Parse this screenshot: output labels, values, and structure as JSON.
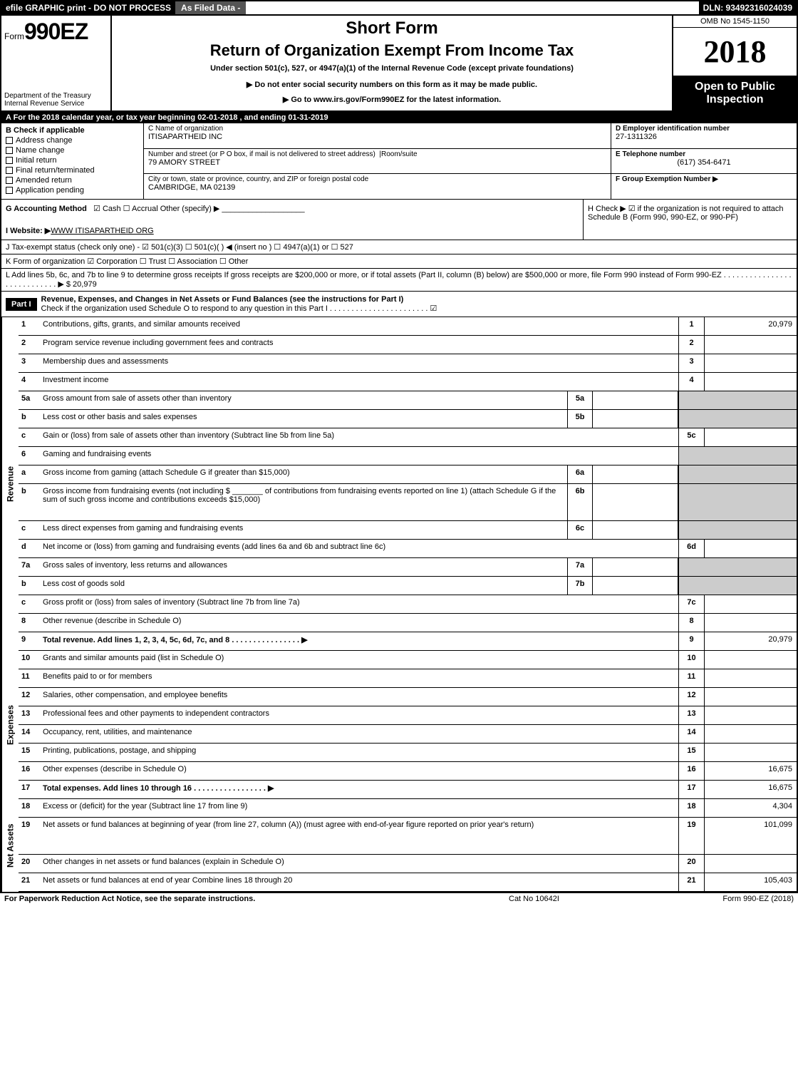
{
  "topbar": {
    "left": "efile GRAPHIC print - DO NOT PROCESS",
    "mid": "As Filed Data -",
    "dln": "DLN: 93492316024039"
  },
  "header": {
    "form_prefix": "Form",
    "form_number": "990EZ",
    "dept": "Department of the Treasury\nInternal Revenue Service",
    "short_form": "Short Form",
    "title": "Return of Organization Exempt From Income Tax",
    "subtitle": "Under section 501(c), 527, or 4947(a)(1) of the Internal Revenue Code (except private foundations)",
    "notice": "▶ Do not enter social security numbers on this form as it may be made public.",
    "goto": "▶ Go to www.irs.gov/Form990EZ for the latest information.",
    "omb": "OMB No 1545-1150",
    "year": "2018",
    "open": "Open to Public Inspection"
  },
  "rowA": "A  For the 2018 calendar year, or tax year beginning 02-01-2018            , and ending 01-31-2019",
  "secB": {
    "title": "B  Check if applicable",
    "items": [
      "Address change",
      "Name change",
      "Initial return",
      "Final return/terminated",
      "Amended return",
      "Application pending"
    ]
  },
  "secC": {
    "name_lbl": "C Name of organization",
    "name": "ITISAPARTHEID INC",
    "addr_lbl": "Number and street (or P O  box, if mail is not delivered to street address)",
    "room_lbl": "Room/suite",
    "addr": "79 AMORY STREET",
    "city_lbl": "City or town, state or province, country, and ZIP or foreign postal code",
    "city": "CAMBRIDGE, MA  02139"
  },
  "secD": {
    "lbl": "D Employer identification number",
    "val": "27-1311326"
  },
  "secE": {
    "lbl": "E Telephone number",
    "val": "(617) 354-6471"
  },
  "secF": {
    "lbl": "F Group Exemption Number  ▶",
    "val": ""
  },
  "secG": {
    "lbl": "G Accounting Method",
    "opts": "☑ Cash   ☐ Accrual   Other (specify) ▶",
    "website_lbl": "I Website: ▶",
    "website": "WWW ITISAPARTHEID ORG"
  },
  "secH": {
    "text": "H   Check ▶  ☑  if the organization is not required to attach Schedule B (Form 990, 990-EZ, or 990-PF)"
  },
  "lineJ": "J Tax-exempt status (check only one) - ☑ 501(c)(3)  ☐ 501(c)(  ) ◀ (insert no ) ☐ 4947(a)(1) or ☐ 527",
  "lineK": "K Form of organization    ☑ Corporation   ☐ Trust   ☐ Association   ☐ Other",
  "lineL": "L Add lines 5b, 6c, and 7b to line 9 to determine gross receipts  If gross receipts are $200,000 or more, or if total assets (Part II, column (B) below) are $500,000 or more, file Form 990 instead of Form 990-EZ  . . . . . . . . . . . . . . . . . . . . . . . . . . . .  ▶ $ 20,979",
  "part1": {
    "hdr": "Part I",
    "title": "Revenue, Expenses, and Changes in Net Assets or Fund Balances (see the instructions for Part I)",
    "check": "Check if the organization used Schedule O to respond to any question in this Part I . . . . . . . . . . . . . . . . . . . . . . .  ☑"
  },
  "sections": {
    "revenue": "Revenue",
    "expenses": "Expenses",
    "netassets": "Net Assets"
  },
  "rows": [
    {
      "n": "1",
      "d": "Contributions, gifts, grants, and similar amounts received",
      "rn": "1",
      "rv": "20,979"
    },
    {
      "n": "2",
      "d": "Program service revenue including government fees and contracts",
      "rn": "2",
      "rv": ""
    },
    {
      "n": "3",
      "d": "Membership dues and assessments",
      "rn": "3",
      "rv": ""
    },
    {
      "n": "4",
      "d": "Investment income",
      "rn": "4",
      "rv": ""
    },
    {
      "n": "5a",
      "d": "Gross amount from sale of assets other than inventory",
      "mn": "5a",
      "mv": "",
      "shade": true
    },
    {
      "n": "b",
      "d": "Less  cost or other basis and sales expenses",
      "mn": "5b",
      "mv": "",
      "shade": true
    },
    {
      "n": "c",
      "d": "Gain or (loss) from sale of assets other than inventory (Subtract line 5b from line 5a)",
      "rn": "5c",
      "rv": ""
    },
    {
      "n": "6",
      "d": "Gaming and fundraising events",
      "shade": true,
      "noval": true
    },
    {
      "n": "a",
      "d": "Gross income from gaming (attach Schedule G if greater than $15,000)",
      "mn": "6a",
      "mv": "",
      "shade": true
    },
    {
      "n": "b",
      "d": "Gross income from fundraising events (not including $ _______ of contributions from fundraising events reported on line 1) (attach Schedule G if the sum of such gross income and contributions exceeds $15,000)",
      "mn": "6b",
      "mv": "",
      "shade": true,
      "tall": true
    },
    {
      "n": "c",
      "d": "Less  direct expenses from gaming and fundraising events",
      "mn": "6c",
      "mv": "",
      "shade": true
    },
    {
      "n": "d",
      "d": "Net income or (loss) from gaming and fundraising events (add lines 6a and 6b and subtract line 6c)",
      "rn": "6d",
      "rv": ""
    },
    {
      "n": "7a",
      "d": "Gross sales of inventory, less returns and allowances",
      "mn": "7a",
      "mv": "",
      "shade": true
    },
    {
      "n": "b",
      "d": "Less  cost of goods sold",
      "mn": "7b",
      "mv": "",
      "shade": true
    },
    {
      "n": "c",
      "d": "Gross profit or (loss) from sales of inventory (Subtract line 7b from line 7a)",
      "rn": "7c",
      "rv": ""
    },
    {
      "n": "8",
      "d": "Other revenue (describe in Schedule O)",
      "rn": "8",
      "rv": ""
    },
    {
      "n": "9",
      "d": "Total revenue. Add lines 1, 2, 3, 4, 5c, 6d, 7c, and 8   . . . . . . . . . . . . . . . .  ▶",
      "rn": "9",
      "rv": "20,979",
      "bold": true
    }
  ],
  "exp_rows": [
    {
      "n": "10",
      "d": "Grants and similar amounts paid (list in Schedule O)",
      "rn": "10",
      "rv": ""
    },
    {
      "n": "11",
      "d": "Benefits paid to or for members",
      "rn": "11",
      "rv": ""
    },
    {
      "n": "12",
      "d": "Salaries, other compensation, and employee benefits",
      "rn": "12",
      "rv": ""
    },
    {
      "n": "13",
      "d": "Professional fees and other payments to independent contractors",
      "rn": "13",
      "rv": ""
    },
    {
      "n": "14",
      "d": "Occupancy, rent, utilities, and maintenance",
      "rn": "14",
      "rv": ""
    },
    {
      "n": "15",
      "d": "Printing, publications, postage, and shipping",
      "rn": "15",
      "rv": ""
    },
    {
      "n": "16",
      "d": "Other expenses (describe in Schedule O)",
      "rn": "16",
      "rv": "16,675"
    },
    {
      "n": "17",
      "d": "Total expenses. Add lines 10 through 16      . . . . . . . . . . . . . . . . .  ▶",
      "rn": "17",
      "rv": "16,675",
      "bold": true
    }
  ],
  "na_rows": [
    {
      "n": "18",
      "d": "Excess or (deficit) for the year (Subtract line 17 from line 9)",
      "rn": "18",
      "rv": "4,304"
    },
    {
      "n": "19",
      "d": "Net assets or fund balances at beginning of year (from line 27, column (A)) (must agree with end-of-year figure reported on prior year's return)",
      "rn": "19",
      "rv": "101,099",
      "tall": true
    },
    {
      "n": "20",
      "d": "Other changes in net assets or fund balances (explain in Schedule O)",
      "rn": "20",
      "rv": ""
    },
    {
      "n": "21",
      "d": "Net assets or fund balances at end of year  Combine lines 18 through 20",
      "rn": "21",
      "rv": "105,403"
    }
  ],
  "footer": {
    "l": "For Paperwork Reduction Act Notice, see the separate instructions.",
    "m": "Cat  No  10642I",
    "r": "Form 990-EZ (2018)"
  }
}
